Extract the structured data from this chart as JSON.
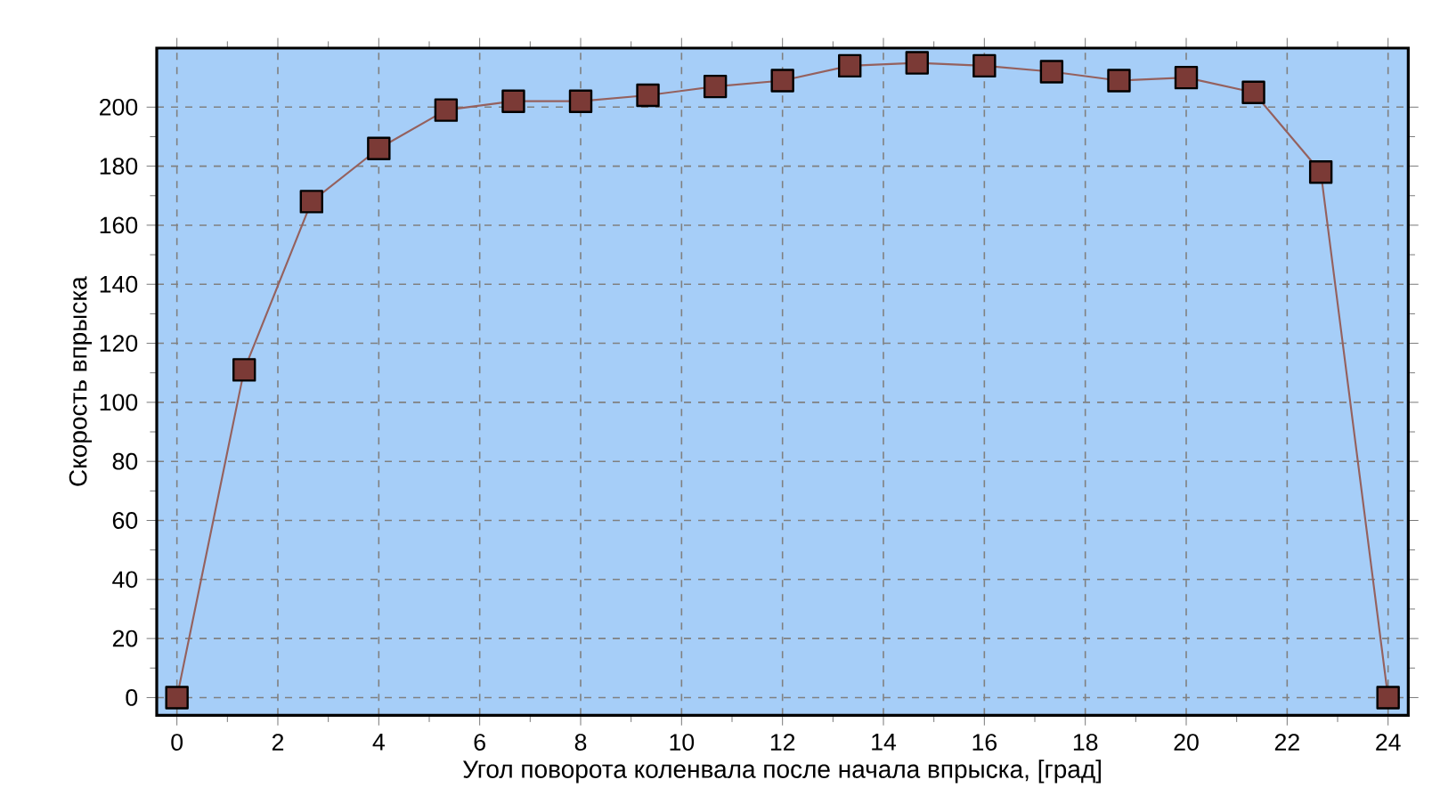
{
  "chart_data": {
    "type": "line",
    "xlabel": "Угол поворота коленвала после начала впрыска, [град]",
    "ylabel": "Скорость впрыска",
    "x": [
      0,
      1.333,
      2.667,
      4,
      5.333,
      6.667,
      8,
      9.333,
      10.667,
      12,
      13.333,
      14.667,
      16,
      17.333,
      18.667,
      20,
      21.333,
      22.667,
      24
    ],
    "series": [
      {
        "color": "#7b3a36",
        "values": [
          0,
          111,
          168,
          186,
          199,
          202,
          202,
          204,
          207,
          209,
          214,
          215,
          214,
          212,
          209,
          210,
          205,
          178,
          0
        ]
      }
    ],
    "xlim": [
      -0.4,
      24.4
    ],
    "ylim": [
      -6,
      220
    ],
    "xticks": [
      0,
      2,
      4,
      6,
      8,
      10,
      12,
      14,
      16,
      18,
      20,
      22,
      24
    ],
    "yticks": [
      0,
      20,
      40,
      60,
      80,
      100,
      120,
      140,
      160,
      180,
      200
    ],
    "grid": true,
    "marker": "square",
    "line_style": "solid"
  }
}
